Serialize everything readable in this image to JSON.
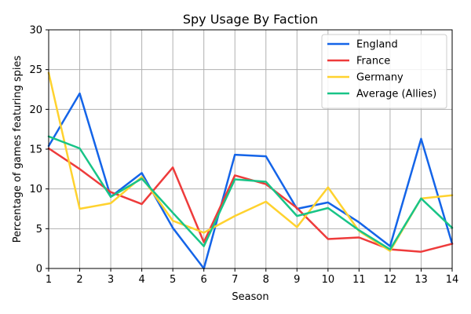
{
  "chart_data": {
    "type": "line",
    "title": "Spy Usage By Faction",
    "xlabel": "Season",
    "ylabel": "Percentage of games featuring spies",
    "x": [
      1,
      2,
      3,
      4,
      5,
      6,
      7,
      8,
      9,
      10,
      11,
      12,
      13,
      14
    ],
    "xlim": [
      1,
      14
    ],
    "ylim": [
      0,
      30
    ],
    "xticks": [
      1,
      2,
      3,
      4,
      5,
      6,
      7,
      8,
      9,
      10,
      11,
      12,
      13,
      14
    ],
    "yticks": [
      0,
      5,
      10,
      15,
      20,
      25,
      30
    ],
    "grid": true,
    "legend_position": "upper-right",
    "series": [
      {
        "name": "England",
        "color": "#1464e8",
        "values": [
          15.4,
          22.0,
          9.0,
          12.0,
          5.1,
          0.0,
          14.3,
          14.1,
          7.5,
          8.3,
          5.8,
          2.8,
          16.3,
          3.1
        ]
      },
      {
        "name": "France",
        "color": "#ee3b3b",
        "values": [
          15.1,
          12.5,
          9.6,
          8.1,
          12.7,
          3.3,
          11.7,
          10.6,
          7.6,
          3.7,
          3.9,
          2.4,
          2.1,
          3.1
        ]
      },
      {
        "name": "Germany",
        "color": "#ffd22e",
        "values": [
          24.6,
          7.5,
          8.2,
          11.5,
          6.0,
          4.5,
          6.6,
          8.4,
          5.2,
          10.2,
          4.7,
          2.2,
          8.8,
          9.2
        ]
      },
      {
        "name": "Average (Allies)",
        "color": "#18c487",
        "values": [
          16.6,
          15.1,
          9.0,
          11.3,
          7.0,
          2.8,
          11.2,
          10.9,
          6.6,
          7.6,
          4.8,
          2.4,
          8.8,
          5.1
        ]
      }
    ]
  }
}
